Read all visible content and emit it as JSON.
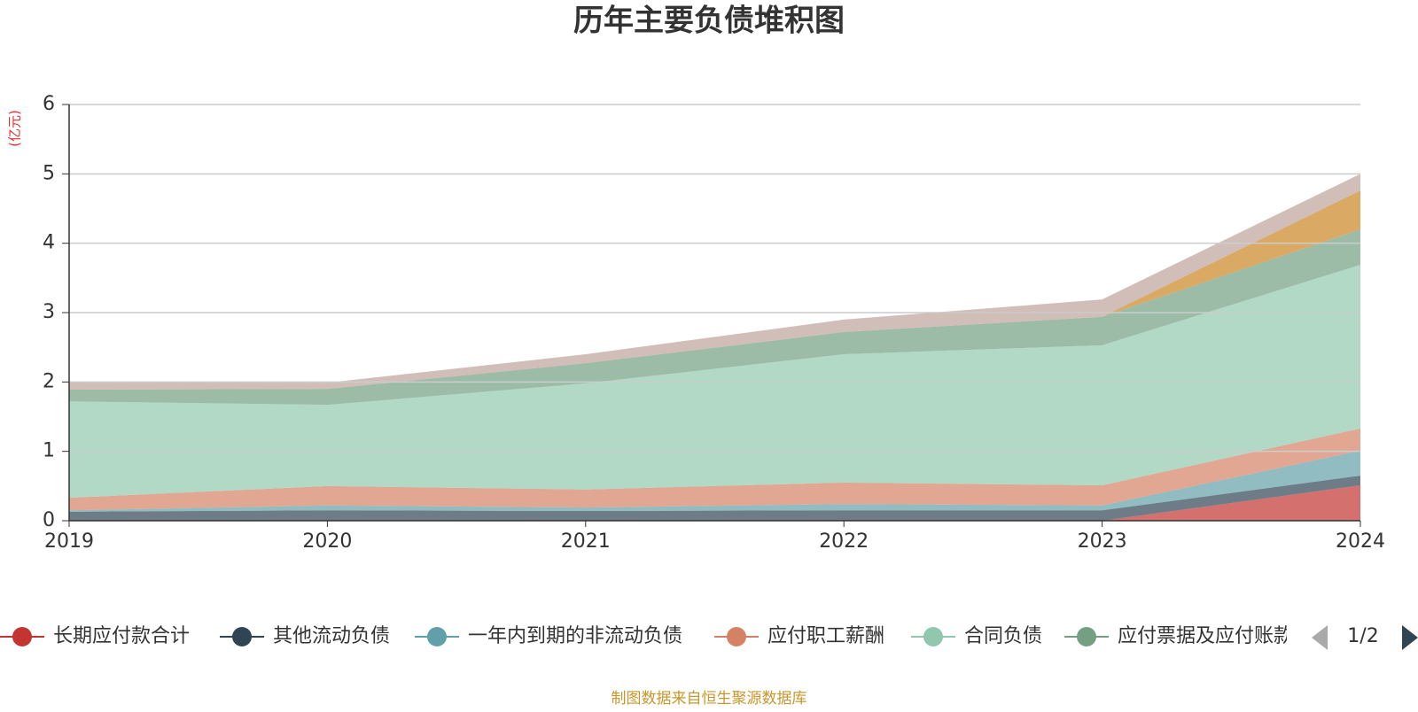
{
  "chart_data": {
    "type": "stacked_area",
    "title": "历年主要负债堆积图",
    "y_unit": "(亿元)",
    "source": "制图数据来自恒生聚源数据库",
    "legend_page": "1/2",
    "x": [
      2019,
      2020,
      2021,
      2022,
      2023,
      2024
    ],
    "xlim": [
      2019,
      2024
    ],
    "xticks": [
      2019,
      2020,
      2021,
      2022,
      2023,
      2024
    ],
    "ylim": [
      0,
      6
    ],
    "yticks": [
      0,
      1,
      2,
      3,
      4,
      5,
      6
    ],
    "grid": true,
    "series": [
      {
        "name": "长期应付款合计",
        "color": "#c23531",
        "values": [
          0,
          0,
          0,
          0,
          0,
          0.51
        ]
      },
      {
        "name": "其他流动负债",
        "color": "#2f4554",
        "values": [
          0.13,
          0.15,
          0.14,
          0.15,
          0.15,
          0.14
        ]
      },
      {
        "name": "一年内到期的非流动负债",
        "color": "#61a0a8",
        "values": [
          0.02,
          0.07,
          0.05,
          0.09,
          0.07,
          0.36
        ]
      },
      {
        "name": "应付职工薪酬",
        "color": "#d48265",
        "values": [
          0.18,
          0.28,
          0.26,
          0.31,
          0.29,
          0.32
        ]
      },
      {
        "name": "合同负债",
        "color": "#91c7ae",
        "values": [
          1.39,
          1.17,
          1.53,
          1.85,
          2.02,
          2.36
        ]
      },
      {
        "name": "应付票据及应付账款",
        "color": "#749f83",
        "values": [
          0.17,
          0.23,
          0.29,
          0.32,
          0.41,
          0.51
        ]
      },
      {
        "color": "#ca8622",
        "values": [
          0,
          0,
          0,
          0,
          0,
          0.56
        ]
      },
      {
        "color": "#bda29a",
        "values": [
          0.11,
          0.09,
          0.13,
          0.18,
          0.25,
          0.24
        ]
      }
    ]
  }
}
